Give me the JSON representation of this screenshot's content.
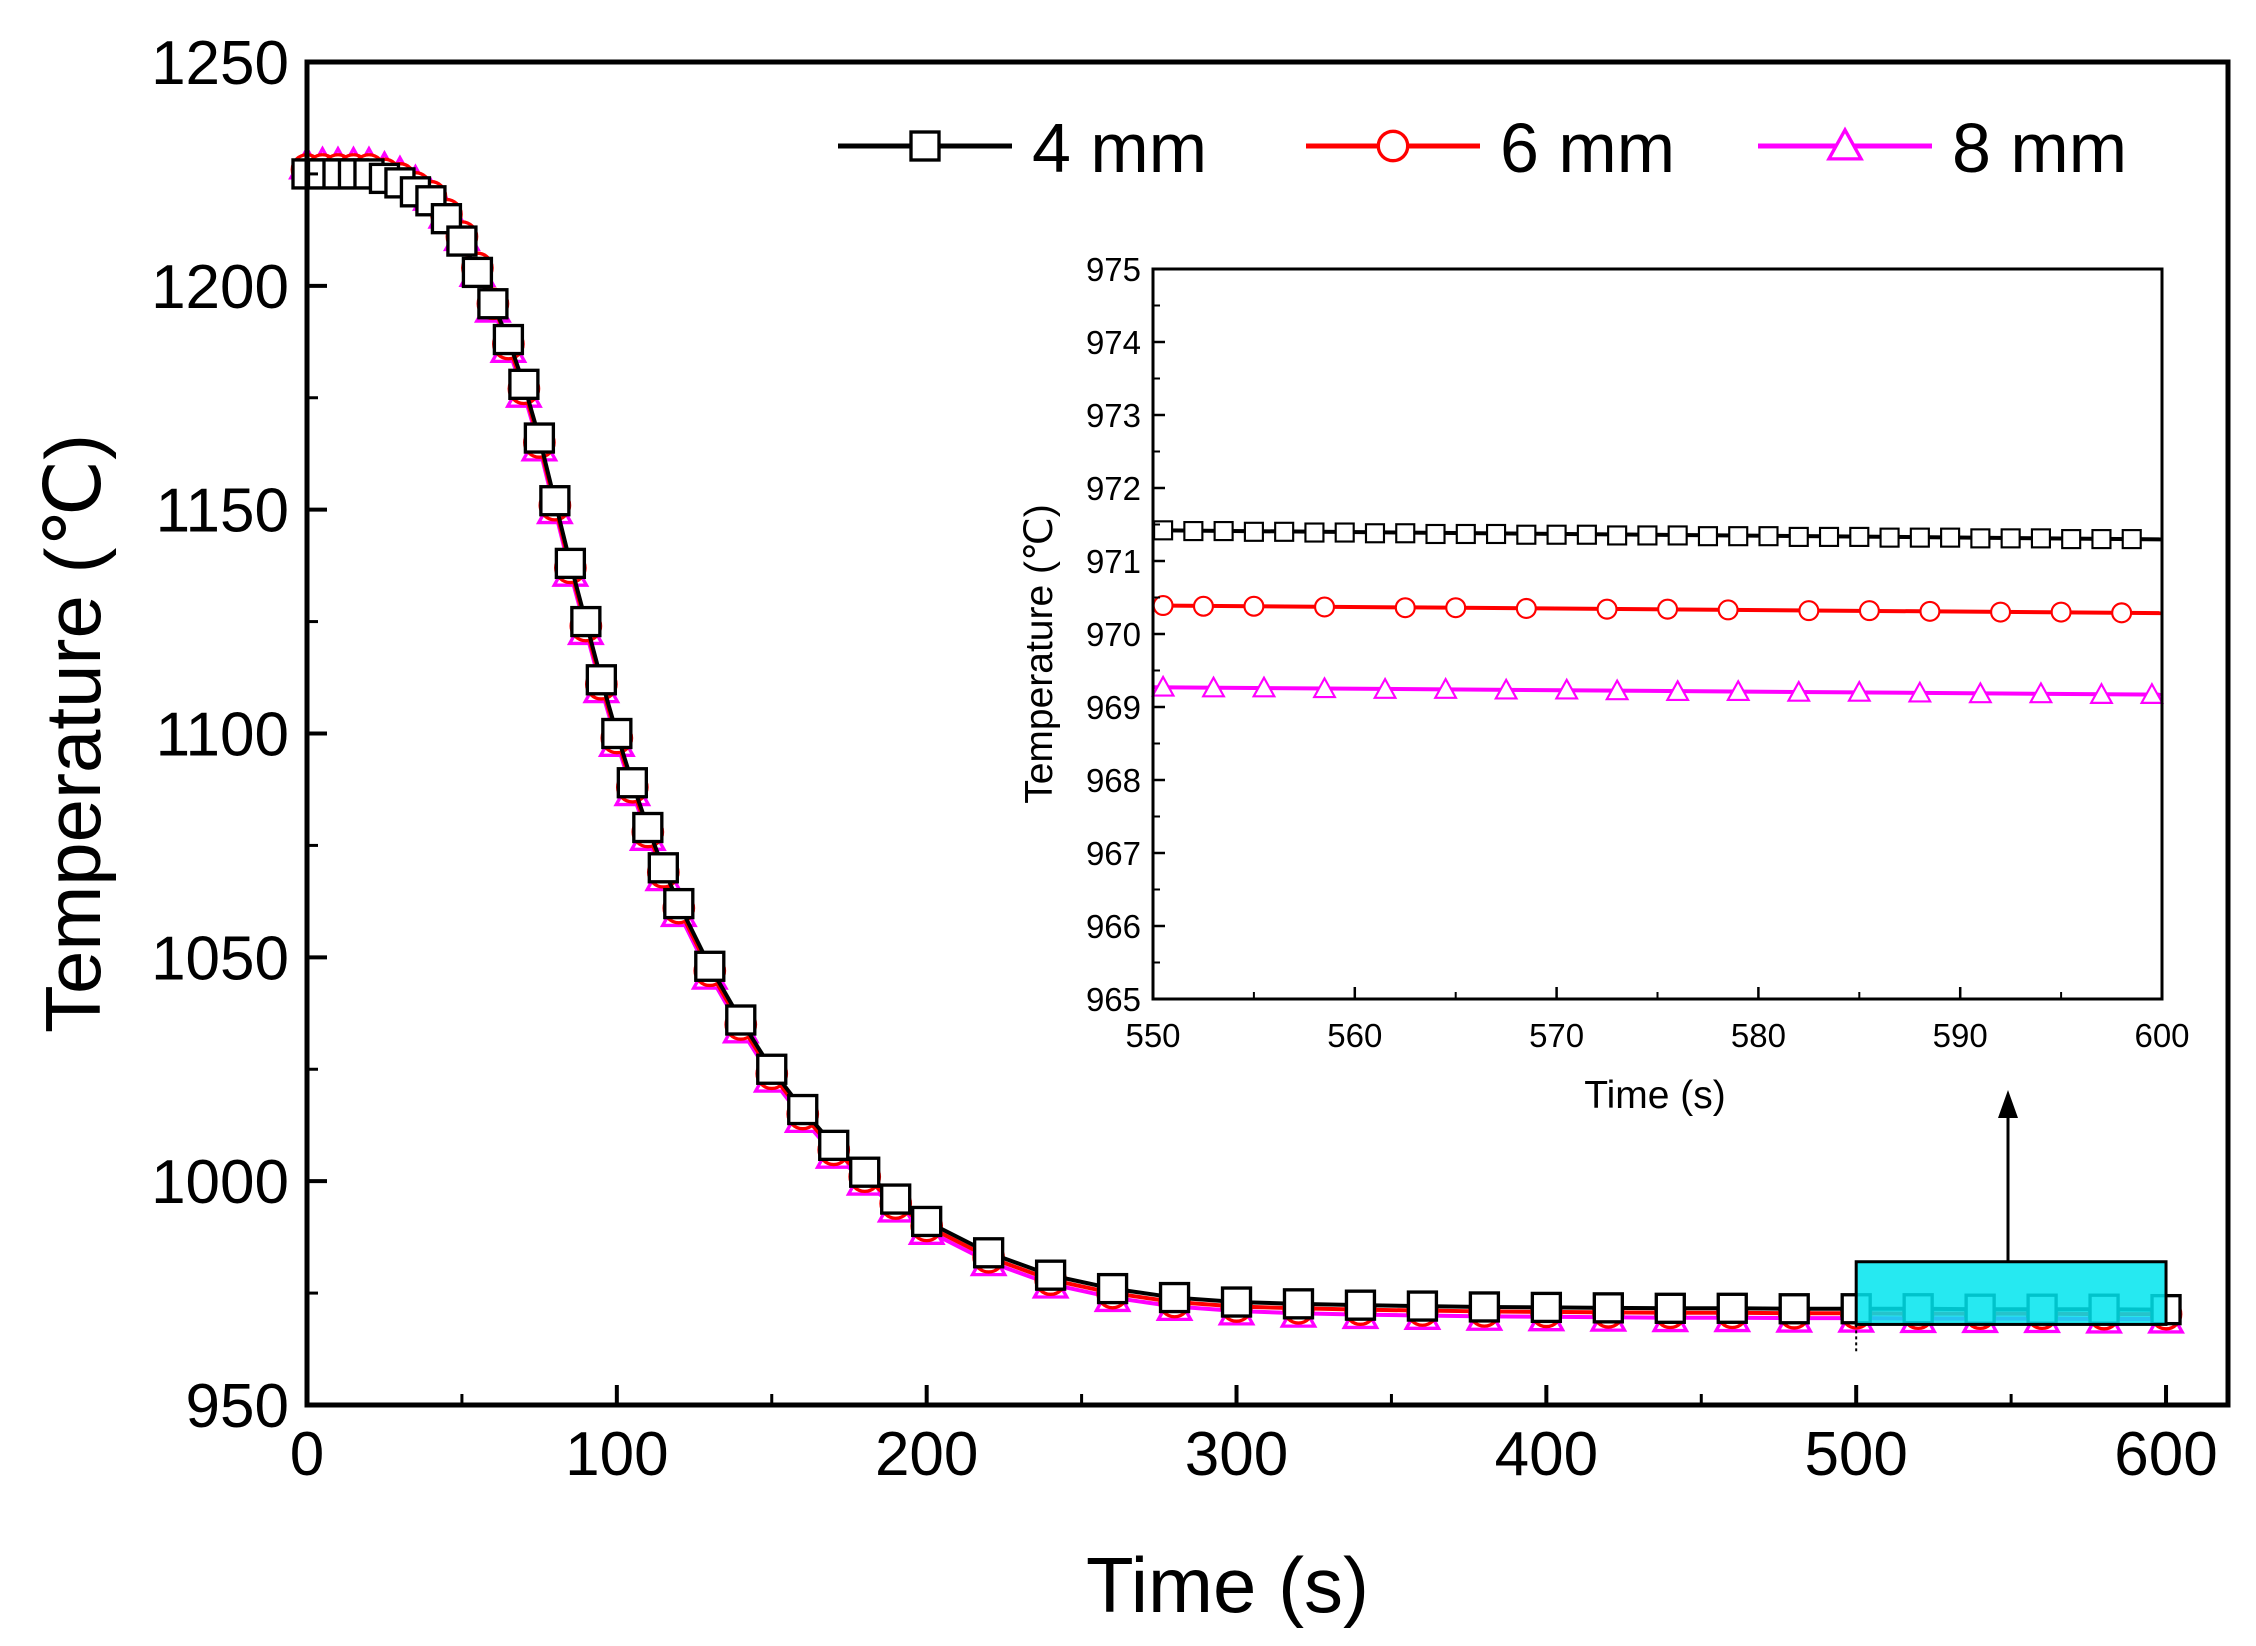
{
  "chart_data": [
    {
      "id": "main",
      "type": "line",
      "title": "",
      "xlabel": "Time (s)",
      "ylabel": "Temperature (℃)",
      "xlim": [
        0,
        620
      ],
      "ylim": [
        950,
        1250
      ],
      "xticks": [
        0,
        100,
        200,
        300,
        400,
        500,
        600
      ],
      "yticks": [
        950,
        1000,
        1050,
        1100,
        1150,
        1200,
        1250
      ],
      "xtick_labels": [
        "0",
        "100",
        "200",
        "300",
        "400",
        "500",
        "600"
      ],
      "ytick_labels": [
        "950",
        "1000",
        "1050",
        "1100",
        "1150",
        "1200",
        "1250"
      ],
      "legend_position": "top-right",
      "series": [
        {
          "name": "4 mm",
          "color": "#000000",
          "marker": "square",
          "x": [
            0,
            5,
            10,
            15,
            20,
            25,
            30,
            35,
            40,
            45,
            50,
            55,
            60,
            65,
            70,
            75,
            80,
            85,
            90,
            95,
            100,
            105,
            110,
            115,
            120,
            130,
            140,
            150,
            160,
            170,
            180,
            190,
            200,
            220,
            240,
            260,
            280,
            300,
            320,
            340,
            360,
            380,
            400,
            420,
            440,
            460,
            480,
            500,
            520,
            540,
            560,
            580,
            600
          ],
          "y": [
            1225,
            1225,
            1225,
            1225,
            1225,
            1224,
            1223,
            1221,
            1219,
            1215,
            1210,
            1203,
            1196,
            1188,
            1178,
            1166,
            1152,
            1138,
            1125,
            1112,
            1100,
            1089,
            1079,
            1070,
            1062,
            1048,
            1036,
            1025,
            1016,
            1008,
            1002,
            996,
            991,
            984,
            979,
            976,
            974,
            973,
            972.6,
            972.3,
            972.1,
            971.9,
            971.8,
            971.7,
            971.6,
            971.6,
            971.5,
            971.5,
            971.5,
            971.4,
            971.4,
            971.4,
            971.3
          ]
        },
        {
          "name": "6 mm",
          "color": "#ff0000",
          "marker": "circle",
          "x": [
            0,
            5,
            10,
            15,
            20,
            25,
            30,
            35,
            40,
            45,
            50,
            55,
            60,
            65,
            70,
            75,
            80,
            85,
            90,
            95,
            100,
            105,
            110,
            115,
            120,
            130,
            140,
            150,
            160,
            170,
            180,
            190,
            200,
            220,
            240,
            260,
            280,
            300,
            320,
            340,
            360,
            380,
            400,
            420,
            440,
            460,
            480,
            500,
            520,
            540,
            560,
            580,
            600
          ],
          "y": [
            1226,
            1226,
            1226,
            1226,
            1226,
            1225,
            1224,
            1222,
            1220,
            1216,
            1211,
            1204,
            1196,
            1187,
            1177,
            1165,
            1151,
            1137,
            1124,
            1111,
            1099,
            1088,
            1078,
            1069,
            1061,
            1047,
            1035,
            1024,
            1015,
            1007,
            1001,
            995,
            990,
            983,
            978,
            975,
            973,
            972,
            971.6,
            971.3,
            971.1,
            970.9,
            970.8,
            970.7,
            970.6,
            970.6,
            970.5,
            970.5,
            970.4,
            970.4,
            970.4,
            970.3,
            970.3
          ]
        },
        {
          "name": "8 mm",
          "color": "#ff00ff",
          "marker": "triangle",
          "x": [
            0,
            5,
            10,
            15,
            20,
            25,
            30,
            35,
            40,
            45,
            50,
            55,
            60,
            65,
            70,
            75,
            80,
            85,
            90,
            95,
            100,
            105,
            110,
            115,
            120,
            130,
            140,
            150,
            160,
            170,
            180,
            190,
            200,
            220,
            240,
            260,
            280,
            300,
            320,
            340,
            360,
            380,
            400,
            420,
            440,
            460,
            480,
            500,
            520,
            540,
            560,
            580,
            600
          ],
          "y": [
            1227,
            1227,
            1227,
            1227,
            1227,
            1226,
            1225,
            1223,
            1220,
            1216,
            1211,
            1203,
            1195,
            1186,
            1176,
            1164,
            1150,
            1136,
            1123,
            1110,
            1098,
            1087,
            1077,
            1068,
            1060,
            1046,
            1034,
            1023,
            1014,
            1006,
            1000,
            994,
            989,
            982,
            977,
            974,
            972,
            971,
            970.5,
            970.2,
            970,
            969.8,
            969.7,
            969.6,
            969.5,
            969.5,
            969.4,
            969.4,
            969.3,
            969.3,
            969.3,
            969.2,
            969.2
          ]
        }
      ],
      "highlight_region": {
        "x_range": [
          500,
          600
        ],
        "y_range": [
          968,
          982
        ],
        "color": "#00e5ee",
        "arrow_to": "inset"
      }
    },
    {
      "id": "inset",
      "type": "line",
      "title": "",
      "xlabel": "Time (s)",
      "ylabel": "Temperature (℃)",
      "xlim": [
        550,
        600
      ],
      "ylim": [
        965,
        975
      ],
      "xticks": [
        550,
        560,
        570,
        580,
        590,
        600
      ],
      "yticks": [
        965,
        966,
        967,
        968,
        969,
        970,
        971,
        972,
        973,
        974,
        975
      ],
      "xtick_labels": [
        "550",
        "560",
        "570",
        "580",
        "590",
        "600"
      ],
      "ytick_labels": [
        "965",
        "966",
        "967",
        "968",
        "969",
        "970",
        "971",
        "972",
        "973",
        "974",
        "975"
      ],
      "series": [
        {
          "name": "4 mm",
          "color": "#000000",
          "marker": "square",
          "x": [
            550.5,
            552,
            553.5,
            555,
            556.5,
            558,
            559.5,
            561,
            562.5,
            564,
            565.5,
            567,
            568.5,
            570,
            571.5,
            573,
            574.5,
            576,
            577.5,
            579,
            580.5,
            582,
            583.5,
            585,
            586.5,
            588,
            589.5,
            591,
            592.5,
            594,
            595.5,
            597,
            598.5
          ],
          "y": [
            971.42,
            971.41,
            971.41,
            971.4,
            971.4,
            971.39,
            971.39,
            971.38,
            971.38,
            971.37,
            971.37,
            971.37,
            971.36,
            971.36,
            971.36,
            971.35,
            971.35,
            971.35,
            971.34,
            971.34,
            971.34,
            971.33,
            971.33,
            971.33,
            971.32,
            971.32,
            971.32,
            971.31,
            971.31,
            971.31,
            971.3,
            971.3,
            971.3
          ]
        },
        {
          "name": "6 mm",
          "color": "#ff0000",
          "marker": "circle",
          "x": [
            550.5,
            552.5,
            555,
            558.5,
            562.5,
            565,
            568.5,
            572.5,
            575.5,
            578.5,
            582.5,
            585.5,
            588.5,
            592,
            595,
            598
          ],
          "y": [
            970.39,
            970.38,
            970.38,
            970.37,
            970.36,
            970.36,
            970.35,
            970.34,
            970.34,
            970.33,
            970.32,
            970.32,
            970.31,
            970.3,
            970.3,
            970.29
          ]
        },
        {
          "name": "8 mm",
          "color": "#ff00ff",
          "marker": "triangle",
          "x": [
            550.5,
            553,
            555.5,
            558.5,
            561.5,
            564.5,
            567.5,
            570.5,
            573,
            576,
            579,
            582,
            585,
            588,
            591,
            594,
            597,
            599.5
          ],
          "y": [
            969.27,
            969.26,
            969.26,
            969.25,
            969.24,
            969.24,
            969.23,
            969.23,
            969.22,
            969.21,
            969.21,
            969.2,
            969.2,
            969.19,
            969.18,
            969.18,
            969.17,
            969.17
          ]
        }
      ]
    }
  ]
}
